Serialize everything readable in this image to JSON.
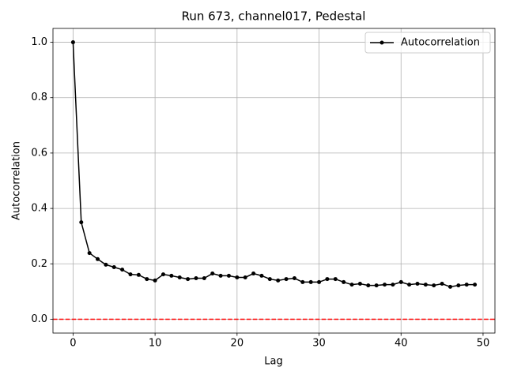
{
  "chart_data": {
    "type": "line",
    "title": "Run 673, channel017, Pedestal",
    "xlabel": "Lag",
    "ylabel": "Autocorrelation",
    "x": [
      0,
      1,
      2,
      3,
      4,
      5,
      6,
      7,
      8,
      9,
      10,
      11,
      12,
      13,
      14,
      15,
      16,
      17,
      18,
      19,
      20,
      21,
      22,
      23,
      24,
      25,
      26,
      27,
      28,
      29,
      30,
      31,
      32,
      33,
      34,
      35,
      36,
      37,
      38,
      39,
      40,
      41,
      42,
      43,
      44,
      45,
      46,
      47,
      48,
      49
    ],
    "series": [
      {
        "name": "Autocorrelation",
        "color": "#000000",
        "marker": "circle",
        "values": [
          1.0,
          0.35,
          0.239,
          0.217,
          0.197,
          0.188,
          0.179,
          0.162,
          0.16,
          0.145,
          0.14,
          0.162,
          0.157,
          0.151,
          0.145,
          0.148,
          0.148,
          0.165,
          0.157,
          0.157,
          0.151,
          0.151,
          0.165,
          0.157,
          0.145,
          0.14,
          0.145,
          0.148,
          0.134,
          0.134,
          0.134,
          0.145,
          0.145,
          0.134,
          0.125,
          0.128,
          0.122,
          0.122,
          0.125,
          0.125,
          0.134,
          0.125,
          0.128,
          0.125,
          0.122,
          0.128,
          0.117,
          0.122,
          0.125,
          0.125
        ]
      }
    ],
    "reference_line": {
      "value": 0,
      "color": "#ff0000",
      "style": "dashed"
    },
    "xlim": [
      -2.45,
      51.45
    ],
    "xticks": [
      0,
      10,
      20,
      30,
      40,
      50
    ],
    "ylim": [
      -0.05,
      1.05
    ],
    "yticks": [
      {
        "value": 0,
        "label": "0.0"
      },
      0.2,
      0.4,
      0.6,
      0.8,
      {
        "value": 1,
        "label": "1.0"
      }
    ],
    "grid": true,
    "legend": "upper right"
  }
}
